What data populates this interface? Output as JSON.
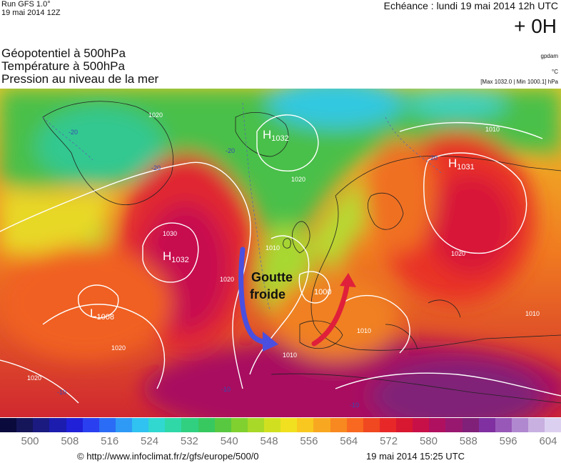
{
  "header": {
    "run": "Run GFS 1.0°",
    "run_date": "19 mai 2014 12Z",
    "echeance": "Echéance : lundi 19 mai 2014 12h UTC",
    "offset": "+ 0H",
    "titles": [
      "Géopotentiel à 500hPa",
      "Température à 500hPa",
      "Pression au niveau de la mer"
    ],
    "unit_geopot": "gpdam",
    "unit_temp": "°C",
    "minmax": "[Max 1032.0 | Min 1000.1] hPa"
  },
  "map": {
    "pressure_centers": [
      {
        "type": "H",
        "value": "1032"
      },
      {
        "type": "H",
        "value": "1031"
      },
      {
        "type": "H",
        "value": "1032"
      },
      {
        "type": "L",
        "value": "1008"
      },
      {
        "type": "L",
        "value": "1000"
      }
    ],
    "isobar_labels": [
      "1020",
      "1030",
      "1020",
      "1010",
      "1020",
      "1010",
      "1020",
      "1010",
      "1010",
      "1010",
      "1020",
      "1020"
    ],
    "temp_labels": [
      "-20",
      "-20",
      "-10",
      "-10",
      "-10",
      "-20",
      "-20"
    ],
    "annotation": [
      "Goutte",
      "froide"
    ],
    "arrow_colors": {
      "cold": "#4a4fe0",
      "warm": "#e0203a"
    }
  },
  "colorbar": {
    "colors": [
      "#0a0a3c",
      "#15155a",
      "#1a1a80",
      "#1c1cae",
      "#2020d8",
      "#2a40f0",
      "#2a6cf5",
      "#2e9af5",
      "#30c2f0",
      "#30d8d0",
      "#30d8a8",
      "#30d080",
      "#38c860",
      "#58c840",
      "#80d030",
      "#a8d828",
      "#d0e020",
      "#f0e020",
      "#f8c820",
      "#f8a820",
      "#f88820",
      "#f86820",
      "#f04820",
      "#e82828",
      "#d81830",
      "#c81048",
      "#b01060",
      "#981870",
      "#802078",
      "#8030a0",
      "#9858b8",
      "#b088d0",
      "#c8b0e0",
      "#dcd0f0"
    ],
    "ticks": [
      "500",
      "508",
      "516",
      "524",
      "532",
      "540",
      "548",
      "556",
      "564",
      "572",
      "580",
      "588",
      "596",
      "604"
    ]
  },
  "footer": {
    "source": "© http://www.infoclimat.fr/z/gfs/europe/500/0",
    "generated": "19 mai 2014 15:25 UTC"
  }
}
